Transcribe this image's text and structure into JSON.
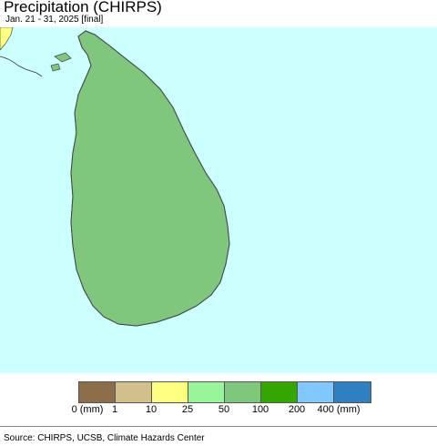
{
  "map": {
    "title": "Precipitation (CHIRPS)",
    "subtitle": "Jan. 21 - 31, 2025 [final]",
    "source": "Source: CHIRPS, UCSB, Climate Hazards Center",
    "colors": {
      "ocean": "#ccffff",
      "land_50_100": "#80c77e",
      "land_25_50": "#99f599",
      "land_100_200": "#33a600",
      "land_200_400": "#80c8ff",
      "india_tip": "#ffff80"
    }
  },
  "legend": {
    "swatches": [
      {
        "color": "#8c6e4b",
        "name": "0-1"
      },
      {
        "color": "#d2c08c",
        "name": "1-10"
      },
      {
        "color": "#ffff80",
        "name": "10-25"
      },
      {
        "color": "#99f599",
        "name": "25-50"
      },
      {
        "color": "#80c77e",
        "name": "50-100"
      },
      {
        "color": "#33a600",
        "name": "100-200"
      },
      {
        "color": "#80c8ff",
        "name": "200-400"
      },
      {
        "color": "#2e80c0",
        "name": "400+"
      }
    ],
    "labels": [
      "0 (mm)",
      "1",
      "10",
      "25",
      "50",
      "100",
      "200",
      "400 (mm)"
    ]
  }
}
